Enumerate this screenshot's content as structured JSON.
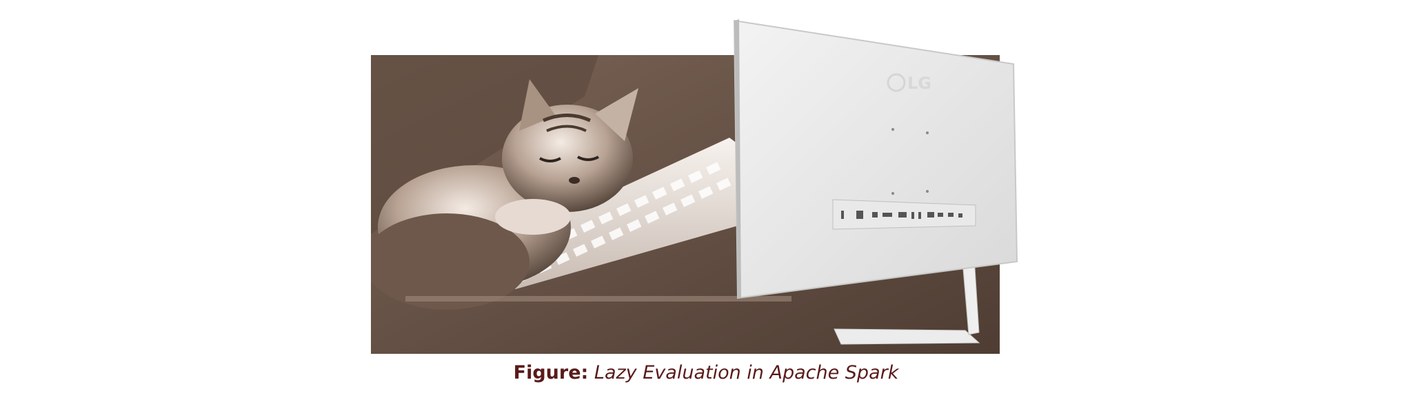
{
  "figure": {
    "caption_label": "Figure:",
    "caption_text": "Lazy Evaluation in Apache Spark"
  },
  "monitor": {
    "logo": "LG"
  },
  "colors": {
    "photo_background": "#6b5549",
    "caption": "#5a1a1a"
  }
}
